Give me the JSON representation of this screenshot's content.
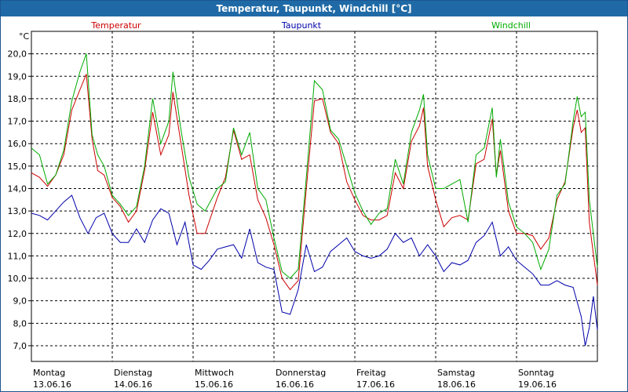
{
  "chart_data": {
    "type": "line",
    "title": "Temperatur, Taupunkt, Windchill [°C]",
    "ylabel": "°C",
    "xlabel": "",
    "ylim": [
      6.3,
      21.0
    ],
    "xlim": [
      0,
      7
    ],
    "grid": true,
    "legend_position": "top",
    "y_ticks": [
      "7,0",
      "8,0",
      "9,0",
      "10,0",
      "11,0",
      "12,0",
      "13,0",
      "14,0",
      "15,0",
      "16,0",
      "17,0",
      "18,0",
      "19,0",
      "20,0"
    ],
    "x_ticks": [
      {
        "day": "Montag",
        "date": "13.06.16"
      },
      {
        "day": "Dienstag",
        "date": "14.06.16"
      },
      {
        "day": "Mittwoch",
        "date": "15.06.16"
      },
      {
        "day": "Donnerstag",
        "date": "16.06.16"
      },
      {
        "day": "Freitag",
        "date": "17.06.16"
      },
      {
        "day": "Samstag",
        "date": "18.06.16"
      },
      {
        "day": "Sonntag",
        "date": "19.06.16"
      }
    ],
    "series": [
      {
        "name": "Temperatur",
        "color": "#cc0000",
        "points": [
          [
            0,
            14.7
          ],
          [
            0.1,
            14.5
          ],
          [
            0.2,
            14.1
          ],
          [
            0.3,
            14.6
          ],
          [
            0.4,
            15.5
          ],
          [
            0.5,
            17.5
          ],
          [
            0.6,
            18.4
          ],
          [
            0.68,
            19.1
          ],
          [
            0.75,
            16.2
          ],
          [
            0.82,
            14.8
          ],
          [
            0.9,
            14.6
          ],
          [
            1.0,
            13.6
          ],
          [
            1.1,
            13.2
          ],
          [
            1.2,
            12.5
          ],
          [
            1.3,
            13.0
          ],
          [
            1.4,
            14.8
          ],
          [
            1.5,
            17.4
          ],
          [
            1.6,
            15.5
          ],
          [
            1.7,
            16.4
          ],
          [
            1.75,
            18.3
          ],
          [
            1.85,
            16.0
          ],
          [
            1.95,
            13.7
          ],
          [
            2.05,
            12.0
          ],
          [
            2.15,
            12.0
          ],
          [
            2.3,
            13.6
          ],
          [
            2.4,
            14.5
          ],
          [
            2.5,
            16.6
          ],
          [
            2.6,
            15.3
          ],
          [
            2.7,
            15.5
          ],
          [
            2.8,
            13.5
          ],
          [
            2.9,
            12.7
          ],
          [
            3.0,
            11.5
          ],
          [
            3.1,
            10.0
          ],
          [
            3.2,
            9.5
          ],
          [
            3.3,
            9.9
          ],
          [
            3.4,
            14.0
          ],
          [
            3.5,
            17.9
          ],
          [
            3.6,
            18.0
          ],
          [
            3.7,
            16.5
          ],
          [
            3.8,
            16.0
          ],
          [
            3.9,
            14.3
          ],
          [
            4.0,
            13.5
          ],
          [
            4.1,
            12.8
          ],
          [
            4.2,
            12.6
          ],
          [
            4.3,
            12.6
          ],
          [
            4.4,
            12.8
          ],
          [
            4.5,
            14.7
          ],
          [
            4.6,
            14.0
          ],
          [
            4.7,
            16.1
          ],
          [
            4.8,
            16.8
          ],
          [
            4.85,
            17.6
          ],
          [
            4.9,
            15.0
          ],
          [
            5.0,
            13.5
          ],
          [
            5.1,
            12.3
          ],
          [
            5.2,
            12.7
          ],
          [
            5.3,
            12.8
          ],
          [
            5.4,
            12.6
          ],
          [
            5.5,
            15.1
          ],
          [
            5.6,
            15.3
          ],
          [
            5.7,
            17.1
          ],
          [
            5.75,
            14.6
          ],
          [
            5.8,
            15.7
          ],
          [
            5.9,
            13.0
          ],
          [
            6.0,
            12.0
          ],
          [
            6.1,
            12.0
          ],
          [
            6.2,
            11.9
          ],
          [
            6.3,
            11.3
          ],
          [
            6.4,
            11.8
          ],
          [
            6.5,
            13.5
          ],
          [
            6.6,
            14.3
          ],
          [
            6.7,
            16.7
          ],
          [
            6.75,
            17.5
          ],
          [
            6.8,
            16.5
          ],
          [
            6.85,
            16.7
          ],
          [
            6.9,
            12.5
          ],
          [
            7.0,
            9.7
          ]
        ]
      },
      {
        "name": "Taupunkt",
        "color": "#0000aa",
        "points": [
          [
            0,
            12.9
          ],
          [
            0.1,
            12.8
          ],
          [
            0.2,
            12.6
          ],
          [
            0.3,
            13.0
          ],
          [
            0.4,
            13.4
          ],
          [
            0.5,
            13.7
          ],
          [
            0.6,
            12.7
          ],
          [
            0.7,
            12.0
          ],
          [
            0.8,
            12.7
          ],
          [
            0.9,
            12.9
          ],
          [
            1.0,
            12.0
          ],
          [
            1.1,
            11.6
          ],
          [
            1.2,
            11.6
          ],
          [
            1.3,
            12.2
          ],
          [
            1.4,
            11.6
          ],
          [
            1.5,
            12.6
          ],
          [
            1.6,
            13.1
          ],
          [
            1.7,
            12.9
          ],
          [
            1.8,
            11.5
          ],
          [
            1.9,
            12.5
          ],
          [
            2.0,
            10.6
          ],
          [
            2.1,
            10.4
          ],
          [
            2.2,
            10.8
          ],
          [
            2.3,
            11.3
          ],
          [
            2.4,
            11.4
          ],
          [
            2.5,
            11.5
          ],
          [
            2.6,
            10.9
          ],
          [
            2.7,
            12.2
          ],
          [
            2.8,
            10.7
          ],
          [
            2.9,
            10.5
          ],
          [
            3.0,
            10.4
          ],
          [
            3.1,
            8.5
          ],
          [
            3.2,
            8.4
          ],
          [
            3.3,
            9.5
          ],
          [
            3.4,
            11.5
          ],
          [
            3.5,
            10.3
          ],
          [
            3.6,
            10.5
          ],
          [
            3.7,
            11.2
          ],
          [
            3.8,
            11.5
          ],
          [
            3.9,
            11.8
          ],
          [
            4.0,
            11.2
          ],
          [
            4.1,
            11.0
          ],
          [
            4.2,
            10.9
          ],
          [
            4.3,
            11.0
          ],
          [
            4.4,
            11.3
          ],
          [
            4.5,
            12.0
          ],
          [
            4.6,
            11.6
          ],
          [
            4.7,
            11.8
          ],
          [
            4.8,
            11.0
          ],
          [
            4.9,
            11.5
          ],
          [
            5.0,
            11.0
          ],
          [
            5.1,
            10.3
          ],
          [
            5.2,
            10.7
          ],
          [
            5.3,
            10.6
          ],
          [
            5.4,
            10.8
          ],
          [
            5.5,
            11.6
          ],
          [
            5.6,
            11.9
          ],
          [
            5.7,
            12.5
          ],
          [
            5.8,
            11.0
          ],
          [
            5.9,
            11.4
          ],
          [
            6.0,
            10.8
          ],
          [
            6.1,
            10.5
          ],
          [
            6.2,
            10.2
          ],
          [
            6.3,
            9.7
          ],
          [
            6.4,
            9.7
          ],
          [
            6.5,
            9.9
          ],
          [
            6.6,
            9.7
          ],
          [
            6.7,
            9.6
          ],
          [
            6.8,
            8.3
          ],
          [
            6.85,
            7.0
          ],
          [
            6.9,
            7.8
          ],
          [
            6.95,
            9.2
          ],
          [
            7.0,
            7.7
          ]
        ]
      },
      {
        "name": "Windchill",
        "color": "#00aa00",
        "points": [
          [
            0,
            15.8
          ],
          [
            0.1,
            15.5
          ],
          [
            0.2,
            14.2
          ],
          [
            0.3,
            14.6
          ],
          [
            0.4,
            15.7
          ],
          [
            0.5,
            17.9
          ],
          [
            0.6,
            19.2
          ],
          [
            0.68,
            20.0
          ],
          [
            0.75,
            16.4
          ],
          [
            0.82,
            15.5
          ],
          [
            0.9,
            15.0
          ],
          [
            1.0,
            13.7
          ],
          [
            1.1,
            13.3
          ],
          [
            1.2,
            12.8
          ],
          [
            1.3,
            13.2
          ],
          [
            1.4,
            15.0
          ],
          [
            1.5,
            18.0
          ],
          [
            1.6,
            16.0
          ],
          [
            1.7,
            17.0
          ],
          [
            1.75,
            19.2
          ],
          [
            1.85,
            16.6
          ],
          [
            1.95,
            14.5
          ],
          [
            2.05,
            13.3
          ],
          [
            2.15,
            13.0
          ],
          [
            2.3,
            14.0
          ],
          [
            2.4,
            14.3
          ],
          [
            2.5,
            16.7
          ],
          [
            2.6,
            15.5
          ],
          [
            2.7,
            16.5
          ],
          [
            2.8,
            14.0
          ],
          [
            2.9,
            13.5
          ],
          [
            3.0,
            11.8
          ],
          [
            3.1,
            10.3
          ],
          [
            3.2,
            10.0
          ],
          [
            3.3,
            10.4
          ],
          [
            3.4,
            14.5
          ],
          [
            3.5,
            18.8
          ],
          [
            3.6,
            18.4
          ],
          [
            3.7,
            16.6
          ],
          [
            3.8,
            16.2
          ],
          [
            3.9,
            15.0
          ],
          [
            4.0,
            13.8
          ],
          [
            4.1,
            13.0
          ],
          [
            4.2,
            12.4
          ],
          [
            4.3,
            12.9
          ],
          [
            4.4,
            13.1
          ],
          [
            4.5,
            15.3
          ],
          [
            4.6,
            14.2
          ],
          [
            4.7,
            16.5
          ],
          [
            4.8,
            17.5
          ],
          [
            4.85,
            18.2
          ],
          [
            4.9,
            15.5
          ],
          [
            5.0,
            14.0
          ],
          [
            5.1,
            14.0
          ],
          [
            5.2,
            14.2
          ],
          [
            5.3,
            14.4
          ],
          [
            5.4,
            12.5
          ],
          [
            5.5,
            15.5
          ],
          [
            5.6,
            15.8
          ],
          [
            5.7,
            17.6
          ],
          [
            5.75,
            14.5
          ],
          [
            5.8,
            16.2
          ],
          [
            5.9,
            13.4
          ],
          [
            6.0,
            12.3
          ],
          [
            6.1,
            12.0
          ],
          [
            6.2,
            11.6
          ],
          [
            6.3,
            10.4
          ],
          [
            6.4,
            11.3
          ],
          [
            6.5,
            13.7
          ],
          [
            6.6,
            14.2
          ],
          [
            6.7,
            17.0
          ],
          [
            6.75,
            18.1
          ],
          [
            6.8,
            17.2
          ],
          [
            6.85,
            17.4
          ],
          [
            6.9,
            13.5
          ],
          [
            7.0,
            10.5
          ]
        ]
      }
    ]
  }
}
